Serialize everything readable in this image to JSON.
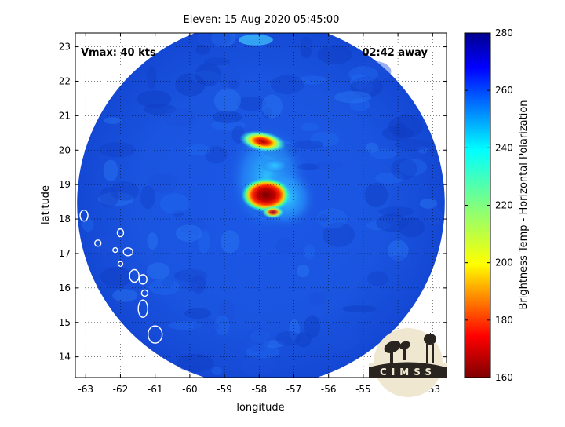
{
  "chart_data": {
    "type": "heatmap",
    "title": "Eleven: 15-Aug-2020 05:45:00",
    "xlabel": "longitude",
    "ylabel": "latitude",
    "xlim": [
      -63.3,
      -52.6
    ],
    "ylim": [
      13.4,
      23.4
    ],
    "xticks": [
      -63,
      -62,
      -61,
      -60,
      -59,
      -58,
      -57,
      -56,
      -55,
      -54,
      -53
    ],
    "yticks": [
      14,
      15,
      16,
      17,
      18,
      19,
      20,
      21,
      22,
      23
    ],
    "grid": true,
    "annotations": {
      "vmax": "Vmax: 40 kts",
      "away": "02:42 away"
    },
    "swath": {
      "center_lon": -57.95,
      "center_lat": 18.45,
      "radius_deg": 5.3
    },
    "features": [
      {
        "name": "core",
        "lon": -57.8,
        "lat": 18.7,
        "value": 165
      },
      {
        "name": "northern band",
        "lon": -57.9,
        "lat": 20.25,
        "value": 185
      },
      {
        "name": "southern band",
        "lon": -57.6,
        "lat": 18.2,
        "value": 205
      }
    ],
    "background_value": 262,
    "colorbar": {
      "label": "Brightness Temp - Horizontal Polarization",
      "min": 160,
      "max": 280,
      "ticks": [
        160,
        180,
        200,
        220,
        240,
        260,
        280
      ],
      "colormap": "jet-reversed"
    },
    "logo": "CIMSS",
    "colors": {
      "ocean": "#1a55e0",
      "cold": "#7a0000",
      "warm": "#00008f"
    }
  }
}
